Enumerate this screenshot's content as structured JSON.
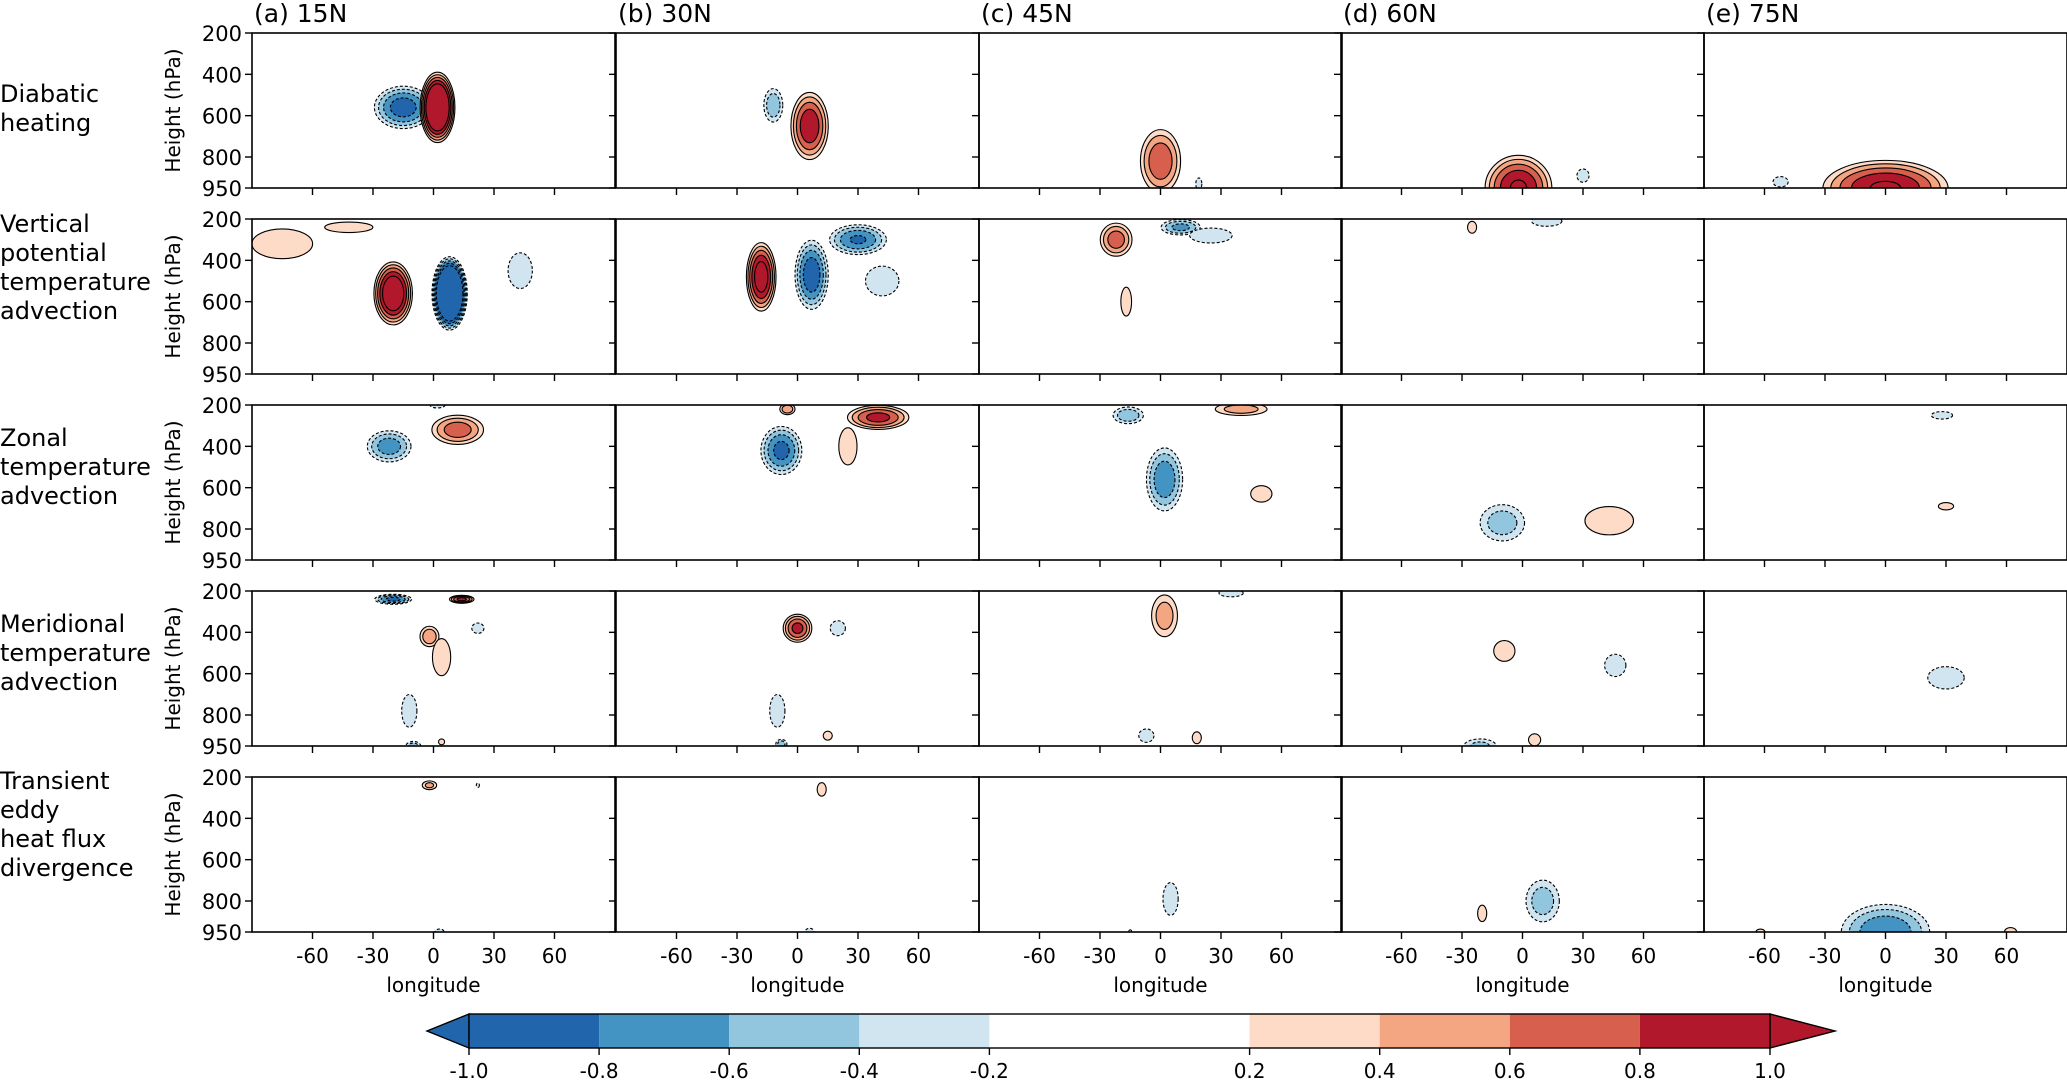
{
  "figure": {
    "row_labels": [
      "Diabatic\nheating",
      "Vertical\npotential\ntemperature\nadvection",
      "Zonal\ntemperature\nadvection",
      "Meridional\ntemperature\nadvection",
      "Transient\neddy\nheat flux\ndivergence"
    ],
    "column_titles": [
      "(a) 15N",
      "(b) 30N",
      "(c) 45N",
      "(d) 60N",
      "(e) 75N"
    ]
  },
  "chart_data": {
    "type": "heatmap",
    "subtype": "filled-contour panel grid",
    "title": "",
    "xlabel": "longitude",
    "ylabel": "Height (hPa)",
    "xlim": [
      -90,
      90
    ],
    "ylim": [
      950,
      200
    ],
    "x_ticks": [
      "-60",
      "-30",
      "0",
      "30",
      "60"
    ],
    "x_tick_values": [
      -60,
      -30,
      0,
      30,
      60
    ],
    "y_ticks": [
      "200",
      "400",
      "600",
      "800",
      "950"
    ],
    "y_tick_values": [
      200,
      400,
      600,
      800,
      950
    ],
    "grid": false,
    "colorbar": {
      "orientation": "horizontal",
      "placement": "bottom",
      "extend": "both",
      "levels": [
        -1.0,
        -0.8,
        -0.6,
        -0.4,
        -0.2,
        0.2,
        0.4,
        0.6,
        0.8,
        1.0
      ],
      "tick_labels": [
        "-1.0",
        "-0.8",
        "-0.6",
        "-0.4",
        "-0.2",
        "0.2",
        "0.4",
        "0.6",
        "0.8",
        "1.0"
      ],
      "colors": [
        "#2166ac",
        "#4393c3",
        "#92c5de",
        "#d1e5f0",
        "#ffffff",
        "#fddbc7",
        "#f4a582",
        "#d6604d",
        "#b2182b"
      ]
    },
    "contour_style": {
      "positive": "solid",
      "negative": "dashed",
      "line_color": "#000000"
    },
    "panels": [
      {
        "row": 0,
        "col": 0,
        "features": [
          {
            "lon": -15,
            "p": 560,
            "wlon": 14,
            "hp": 210,
            "peak": -0.9
          },
          {
            "lon": 2,
            "p": 560,
            "wlon": 8,
            "hp": 330,
            "peak": 1.6
          }
        ]
      },
      {
        "row": 0,
        "col": 1,
        "features": [
          {
            "lon": -12,
            "p": 550,
            "wlon": 5,
            "hp": 180,
            "peak": -0.55
          },
          {
            "lon": 6,
            "p": 650,
            "wlon": 9,
            "hp": 330,
            "peak": 0.95
          }
        ]
      },
      {
        "row": 0,
        "col": 2,
        "features": [
          {
            "lon": 0,
            "p": 820,
            "wlon": 10,
            "hp": 320,
            "peak": 0.75
          },
          {
            "lon": 19,
            "p": 930,
            "wlon": 2,
            "hp": 80,
            "peak": -0.3
          }
        ]
      },
      {
        "row": 0,
        "col": 3,
        "features": [
          {
            "lon": -2,
            "p": 950,
            "wlon": 16,
            "hp": 320,
            "peak": 1.0
          },
          {
            "lon": 30,
            "p": 890,
            "wlon": 4,
            "hp": 90,
            "peak": -0.3
          }
        ]
      },
      {
        "row": 0,
        "col": 4,
        "features": [
          {
            "lon": 0,
            "p": 950,
            "wlon": 30,
            "hp": 270,
            "peak": 1.0
          },
          {
            "lon": -52,
            "p": 920,
            "wlon": 5,
            "hp": 70,
            "peak": -0.3
          }
        ]
      },
      {
        "row": 1,
        "col": 0,
        "features": [
          {
            "lon": -20,
            "p": 560,
            "wlon": 9,
            "hp": 300,
            "peak": 1.3
          },
          {
            "lon": 8,
            "p": 560,
            "wlon": 8,
            "hp": 340,
            "peak": -2.0
          },
          {
            "lon": 43,
            "p": 450,
            "wlon": 8,
            "hp": 240,
            "peak": -0.3
          },
          {
            "lon": -75,
            "p": 320,
            "wlon": 20,
            "hp": 200,
            "peak": 0.3
          },
          {
            "lon": -42,
            "p": 240,
            "wlon": 18,
            "hp": 80,
            "peak": 0.25
          }
        ]
      },
      {
        "row": 1,
        "col": 1,
        "features": [
          {
            "lon": -18,
            "p": 480,
            "wlon": 7,
            "hp": 330,
            "peak": 1.15
          },
          {
            "lon": 7,
            "p": 470,
            "wlon": 8,
            "hp": 340,
            "peak": -0.95
          },
          {
            "lon": 30,
            "p": 300,
            "wlon": 14,
            "hp": 150,
            "peak": -0.8
          },
          {
            "lon": 42,
            "p": 500,
            "wlon": 11,
            "hp": 200,
            "peak": -0.3
          }
        ]
      },
      {
        "row": 1,
        "col": 2,
        "features": [
          {
            "lon": -22,
            "p": 300,
            "wlon": 8,
            "hp": 170,
            "peak": 0.7
          },
          {
            "lon": -17,
            "p": 600,
            "wlon": 4,
            "hp": 220,
            "peak": 0.25
          },
          {
            "lon": 10,
            "p": 240,
            "wlon": 10,
            "hp": 80,
            "peak": -0.65
          },
          {
            "lon": 25,
            "p": 280,
            "wlon": 14,
            "hp": 100,
            "peak": -0.3
          }
        ]
      },
      {
        "row": 1,
        "col": 3,
        "features": [
          {
            "lon": -25,
            "p": 240,
            "wlon": 3,
            "hp": 80,
            "peak": 0.3
          },
          {
            "lon": 12,
            "p": 210,
            "wlon": 10,
            "hp": 70,
            "peak": -0.3
          }
        ]
      },
      {
        "row": 1,
        "col": 4,
        "features": []
      },
      {
        "row": 2,
        "col": 0,
        "features": [
          {
            "lon": -22,
            "p": 400,
            "wlon": 11,
            "hp": 160,
            "peak": -0.7
          },
          {
            "lon": 12,
            "p": 320,
            "wlon": 13,
            "hp": 150,
            "peak": 0.7
          },
          {
            "lon": 2,
            "p": 200,
            "wlon": 5,
            "hp": 40,
            "peak": -0.3
          }
        ]
      },
      {
        "row": 2,
        "col": 1,
        "features": [
          {
            "lon": -8,
            "p": 420,
            "wlon": 10,
            "hp": 240,
            "peak": -0.85
          },
          {
            "lon": 40,
            "p": 260,
            "wlon": 15,
            "hp": 120,
            "peak": 0.85
          },
          {
            "lon": 25,
            "p": 400,
            "wlon": 6,
            "hp": 250,
            "peak": 0.3
          },
          {
            "lon": -5,
            "p": 220,
            "wlon": 4,
            "hp": 60,
            "peak": 0.55
          }
        ]
      },
      {
        "row": 2,
        "col": 2,
        "features": [
          {
            "lon": 2,
            "p": 560,
            "wlon": 9,
            "hp": 320,
            "peak": -0.75
          },
          {
            "lon": -16,
            "p": 250,
            "wlon": 8,
            "hp": 90,
            "peak": -0.55
          },
          {
            "lon": 40,
            "p": 220,
            "wlon": 14,
            "hp": 70,
            "peak": 0.5
          },
          {
            "lon": 50,
            "p": 630,
            "wlon": 7,
            "hp": 110,
            "peak": 0.3
          }
        ]
      },
      {
        "row": 2,
        "col": 3,
        "features": [
          {
            "lon": -10,
            "p": 770,
            "wlon": 12,
            "hp": 200,
            "peak": -0.5
          },
          {
            "lon": 43,
            "p": 760,
            "wlon": 16,
            "hp": 190,
            "peak": 0.3
          }
        ]
      },
      {
        "row": 2,
        "col": 4,
        "features": [
          {
            "lon": 28,
            "p": 250,
            "wlon": 7,
            "hp": 50,
            "peak": -0.3
          },
          {
            "lon": 30,
            "p": 690,
            "wlon": 5,
            "hp": 50,
            "peak": 0.3
          },
          {
            "lon": 30,
            "p": 960,
            "wlon": 10,
            "hp": 30,
            "peak": -0.25
          }
        ]
      },
      {
        "row": 3,
        "col": 0,
        "features": [
          {
            "lon": -20,
            "p": 240,
            "wlon": 9,
            "hp": 50,
            "peak": -0.85
          },
          {
            "lon": 14,
            "p": 240,
            "wlon": 6,
            "hp": 40,
            "peak": 0.85
          },
          {
            "lon": -2,
            "p": 420,
            "wlon": 5,
            "hp": 110,
            "peak": 0.55
          },
          {
            "lon": 4,
            "p": 520,
            "wlon": 6,
            "hp": 250,
            "peak": 0.3
          },
          {
            "lon": 22,
            "p": 380,
            "wlon": 4,
            "hp": 70,
            "peak": -0.3
          },
          {
            "lon": -12,
            "p": 780,
            "wlon": 5,
            "hp": 220,
            "peak": -0.3
          },
          {
            "lon": -10,
            "p": 950,
            "wlon": 4,
            "hp": 50,
            "peak": -0.5
          },
          {
            "lon": 4,
            "p": 930,
            "wlon": 2,
            "hp": 40,
            "peak": 0.3
          }
        ]
      },
      {
        "row": 3,
        "col": 1,
        "features": [
          {
            "lon": 0,
            "p": 380,
            "wlon": 7,
            "hp": 140,
            "peak": 0.85
          },
          {
            "lon": 20,
            "p": 380,
            "wlon": 5,
            "hp": 100,
            "peak": -0.3
          },
          {
            "lon": -10,
            "p": 780,
            "wlon": 5,
            "hp": 220,
            "peak": -0.3
          },
          {
            "lon": -8,
            "p": 940,
            "wlon": 3,
            "hp": 50,
            "peak": -0.5
          },
          {
            "lon": 15,
            "p": 900,
            "wlon": 3,
            "hp": 60,
            "peak": 0.3
          }
        ]
      },
      {
        "row": 3,
        "col": 2,
        "features": [
          {
            "lon": 2,
            "p": 320,
            "wlon": 7,
            "hp": 230,
            "peak": 0.5
          },
          {
            "lon": 35,
            "p": 210,
            "wlon": 8,
            "hp": 50,
            "peak": -0.3
          },
          {
            "lon": -7,
            "p": 900,
            "wlon": 5,
            "hp": 90,
            "peak": -0.3
          },
          {
            "lon": 18,
            "p": 910,
            "wlon": 3,
            "hp": 80,
            "peak": 0.3
          }
        ]
      },
      {
        "row": 3,
        "col": 3,
        "features": [
          {
            "lon": -9,
            "p": 490,
            "wlon": 7,
            "hp": 140,
            "peak": 0.3
          },
          {
            "lon": 46,
            "p": 560,
            "wlon": 7,
            "hp": 150,
            "peak": -0.3
          },
          {
            "lon": -21,
            "p": 950,
            "wlon": 9,
            "hp": 80,
            "peak": -0.45
          },
          {
            "lon": 6,
            "p": 920,
            "wlon": 4,
            "hp": 80,
            "peak": 0.3
          }
        ]
      },
      {
        "row": 3,
        "col": 4,
        "features": [
          {
            "lon": 30,
            "p": 620,
            "wlon": 12,
            "hp": 150,
            "peak": -0.3
          },
          {
            "lon": -50,
            "p": 970,
            "wlon": 10,
            "hp": 30,
            "peak": -0.25
          }
        ]
      },
      {
        "row": 4,
        "col": 0,
        "features": [
          {
            "lon": -2,
            "p": 240,
            "wlon": 4,
            "hp": 50,
            "peak": 0.45
          },
          {
            "lon": 22,
            "p": 240,
            "wlon": 1,
            "hp": 30,
            "peak": -0.3
          },
          {
            "lon": 3,
            "p": 950,
            "wlon": 3,
            "hp": 40,
            "peak": -0.3
          }
        ]
      },
      {
        "row": 4,
        "col": 1,
        "features": [
          {
            "lon": 12,
            "p": 260,
            "wlon": 3,
            "hp": 90,
            "peak": 0.3
          },
          {
            "lon": 6,
            "p": 950,
            "wlon": 3,
            "hp": 50,
            "peak": -0.3
          }
        ]
      },
      {
        "row": 4,
        "col": 2,
        "features": [
          {
            "lon": 5,
            "p": 790,
            "wlon": 5,
            "hp": 220,
            "peak": -0.3
          },
          {
            "lon": -15,
            "p": 950,
            "wlon": 1,
            "hp": 30,
            "peak": 0.3
          }
        ]
      },
      {
        "row": 4,
        "col": 3,
        "features": [
          {
            "lon": 10,
            "p": 800,
            "wlon": 9,
            "hp": 230,
            "peak": -0.5
          },
          {
            "lon": -20,
            "p": 860,
            "wlon": 3,
            "hp": 110,
            "peak": 0.3
          }
        ]
      },
      {
        "row": 4,
        "col": 4,
        "features": [
          {
            "lon": 0,
            "p": 950,
            "wlon": 22,
            "hp": 280,
            "peak": -0.75
          },
          {
            "lon": -62,
            "p": 950,
            "wlon": 3,
            "hp": 40,
            "peak": 0.3
          },
          {
            "lon": 62,
            "p": 950,
            "wlon": 4,
            "hp": 60,
            "peak": 0.3
          }
        ]
      }
    ]
  }
}
